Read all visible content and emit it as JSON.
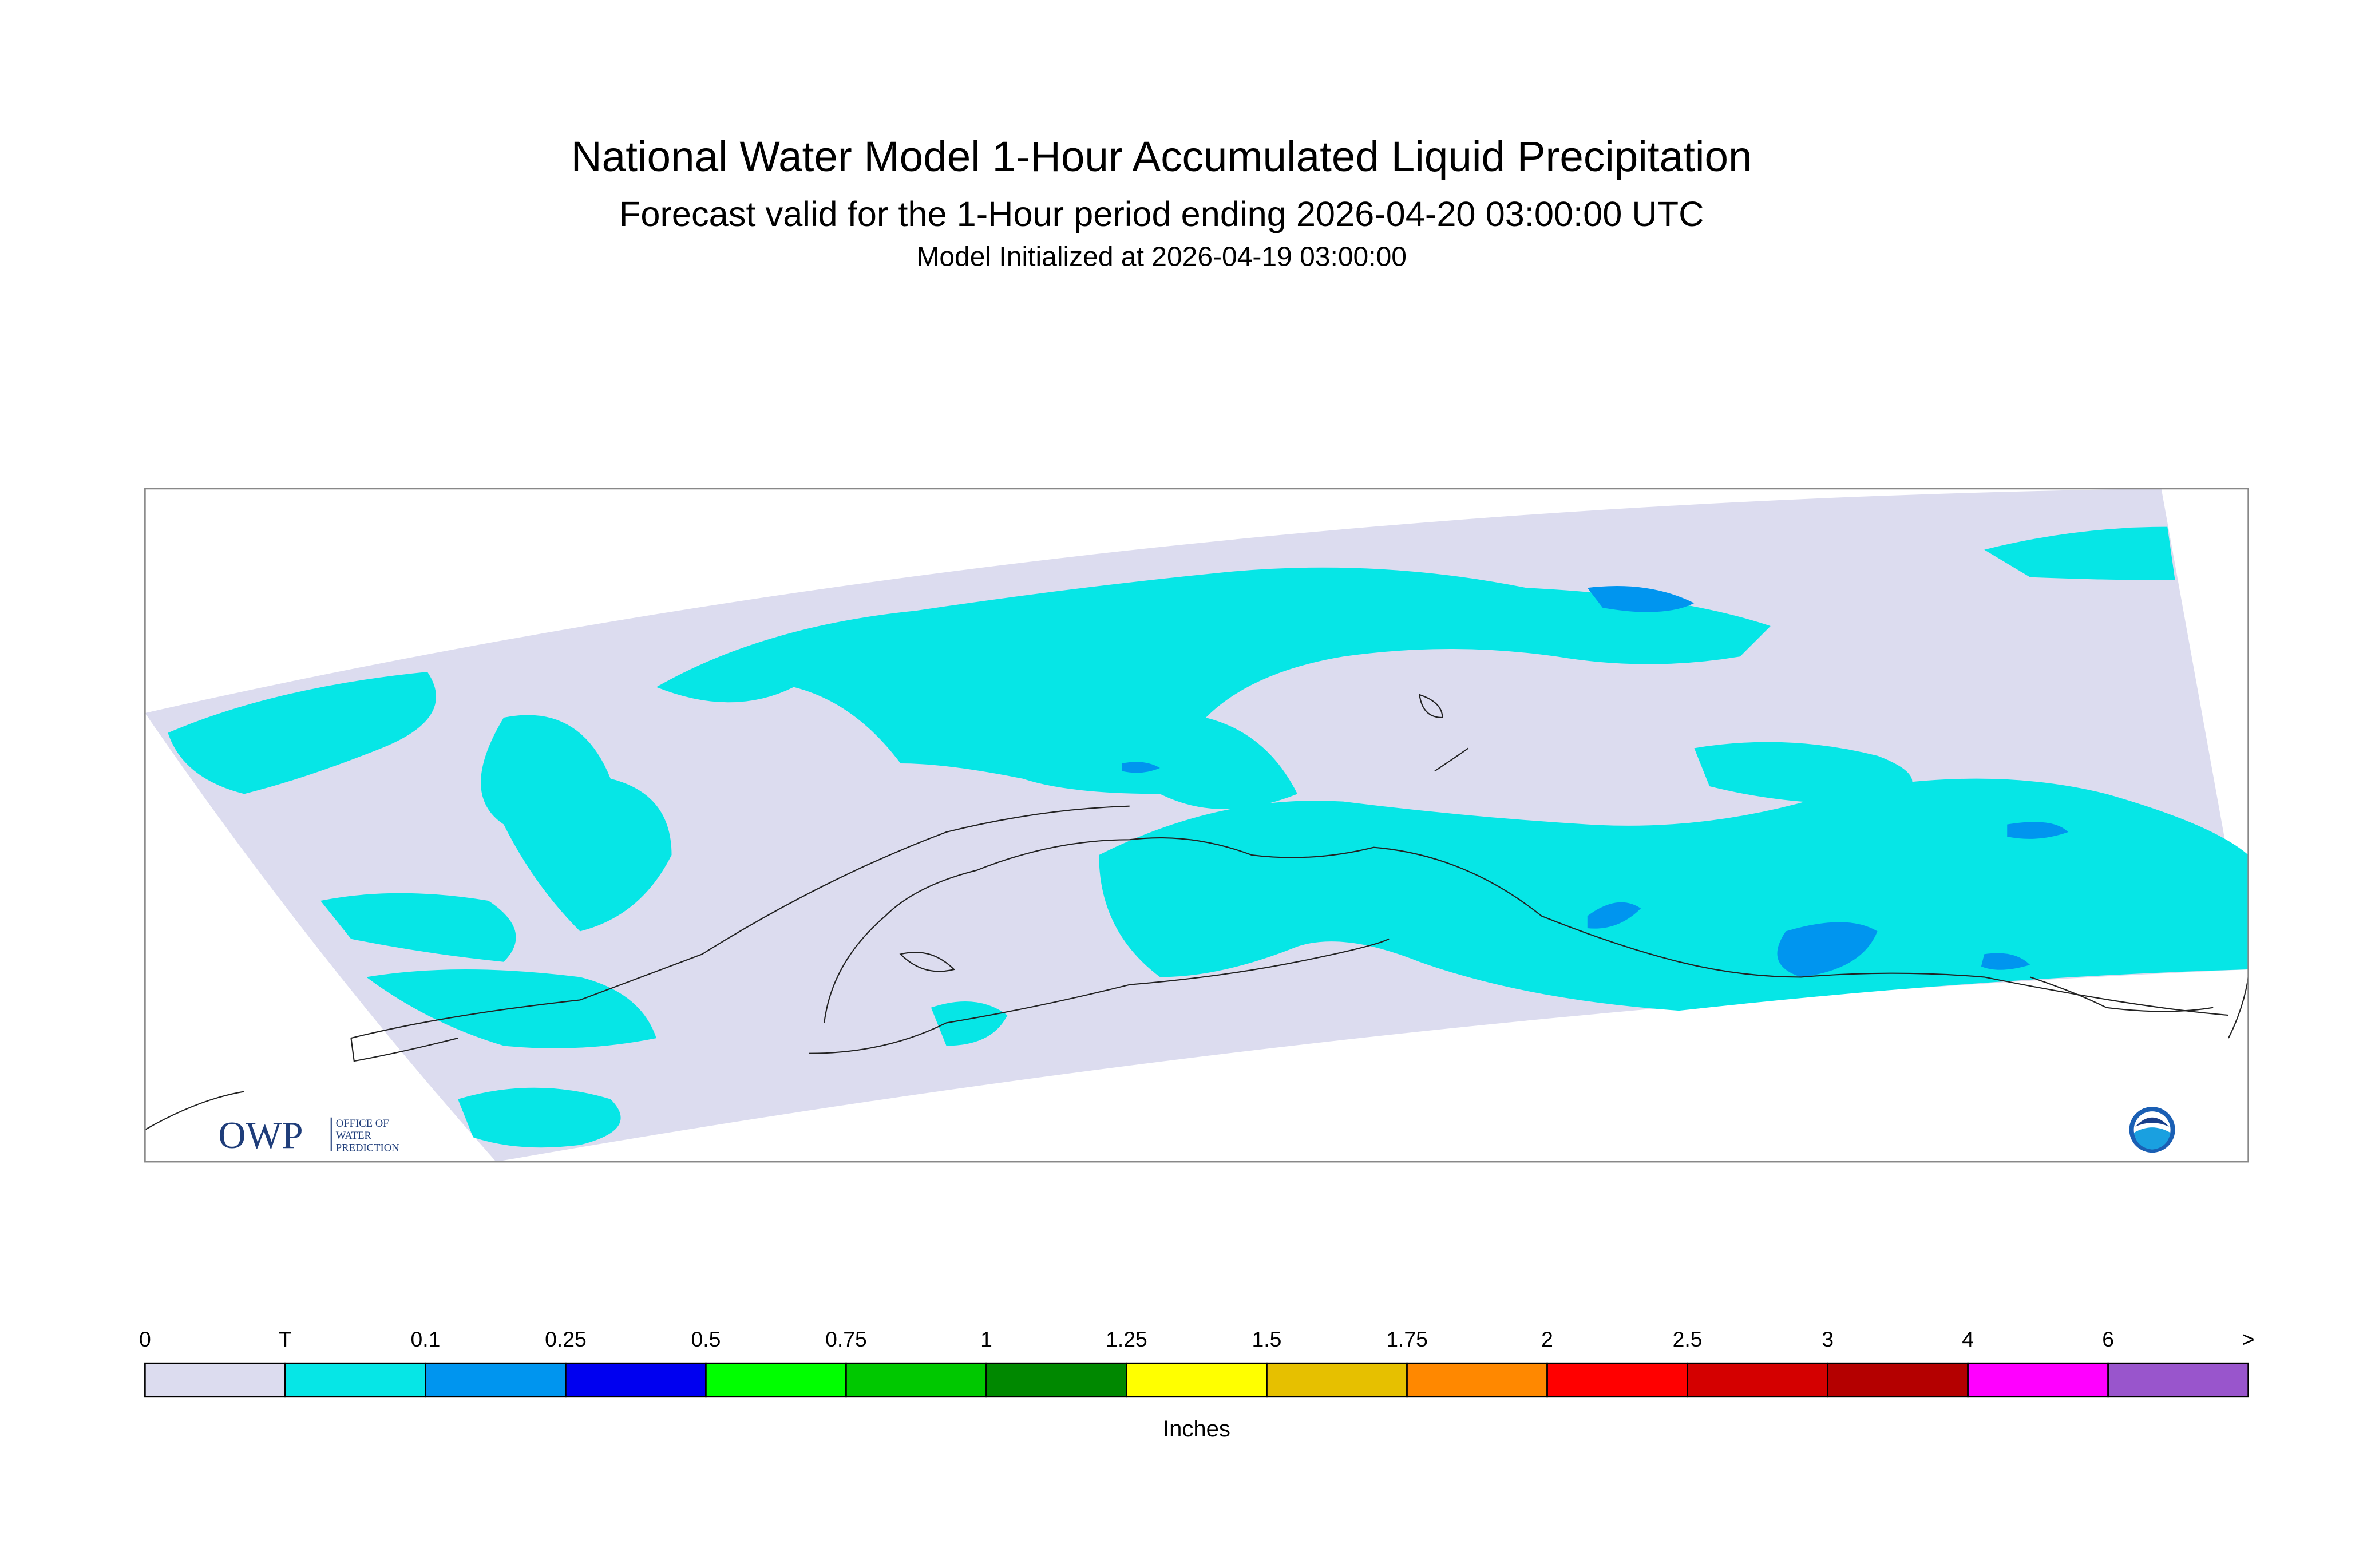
{
  "header": {
    "title": "National Water Model 1-Hour Accumulated Liquid Precipitation",
    "subtitle": "Forecast valid for the 1-Hour period ending 2026-04-20 03:00:00 UTC",
    "initialized": "Model Initialized at 2026-04-19 03:00:00"
  },
  "logo": {
    "mark": "OWP",
    "lines": [
      "OFFICE OF",
      "WATER",
      "PREDICTION"
    ]
  },
  "legend": {
    "labels": [
      "0",
      "T",
      "0.1",
      "0.25",
      "0.5",
      "0.75",
      "1",
      "1.25",
      "1.5",
      "1.75",
      "2",
      "2.5",
      "3",
      "4",
      "6",
      ">"
    ],
    "colors": [
      "#dcdcef",
      "#06e6e6",
      "#0095ef",
      "#0000f0",
      "#00ff00",
      "#00c800",
      "#008800",
      "#ffff00",
      "#e6c000",
      "#ff8800",
      "#ff0000",
      "#d40000",
      "#b40000",
      "#ff00ff",
      "#9955cc"
    ],
    "unit": "Inches"
  }
}
